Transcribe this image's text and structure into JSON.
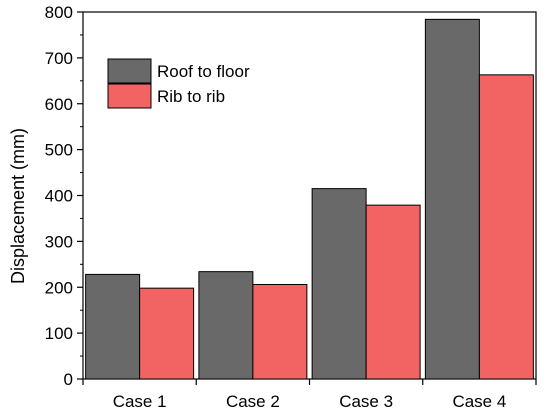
{
  "chart_data": {
    "type": "bar",
    "title": "",
    "xlabel": "",
    "ylabel": "Displacement (mm)",
    "categories": [
      "Case 1",
      "Case 2",
      "Case 3",
      "Case 4"
    ],
    "series": [
      {
        "name": "Roof to floor",
        "color": "#696969",
        "values": [
          228,
          234,
          415,
          784
        ]
      },
      {
        "name": "Rib to rib",
        "color": "#f26363",
        "values": [
          198,
          206,
          379,
          663
        ]
      }
    ],
    "ylim": [
      0,
      800
    ],
    "yticks": [
      0,
      100,
      200,
      300,
      400,
      500,
      600,
      700,
      800
    ],
    "grid": false,
    "legend_position": "top-left"
  }
}
